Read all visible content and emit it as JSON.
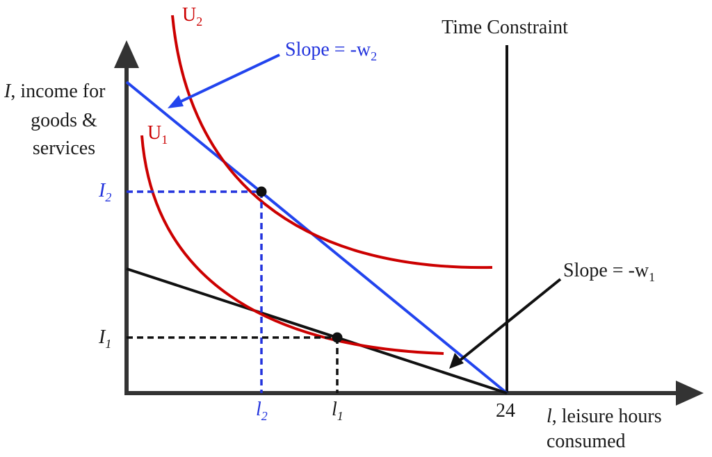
{
  "axes": {
    "y_label_line1_var": "I",
    "y_label_line1_rest": ", income for",
    "y_label_line2": "goods &",
    "y_label_line3": "services",
    "x_label_var": "l",
    "x_label_rest": ", leisure hours",
    "x_label_line2": "consumed",
    "x_tick_24": "24"
  },
  "time_constraint": {
    "label": "Time Constraint"
  },
  "curves": {
    "u1": {
      "base": "U",
      "sub": "1"
    },
    "u2": {
      "base": "U",
      "sub": "2"
    }
  },
  "slopes": {
    "w1": {
      "base": "Slope = -w",
      "sub": "1"
    },
    "w2": {
      "base": "Slope = -w",
      "sub": "2"
    }
  },
  "levels": {
    "I1": {
      "base": "I",
      "sub": "1"
    },
    "I2": {
      "base": "I",
      "sub": "2"
    },
    "l1": {
      "base": "l",
      "sub": "1"
    },
    "l2": {
      "base": "l",
      "sub": "2"
    }
  },
  "colors": {
    "axis": "#333333",
    "budget_w1": "#111111",
    "budget_w2": "#2244ee",
    "indifference": "#cc0000",
    "guide_blue": "#2233dd",
    "guide_black": "#111111"
  }
}
